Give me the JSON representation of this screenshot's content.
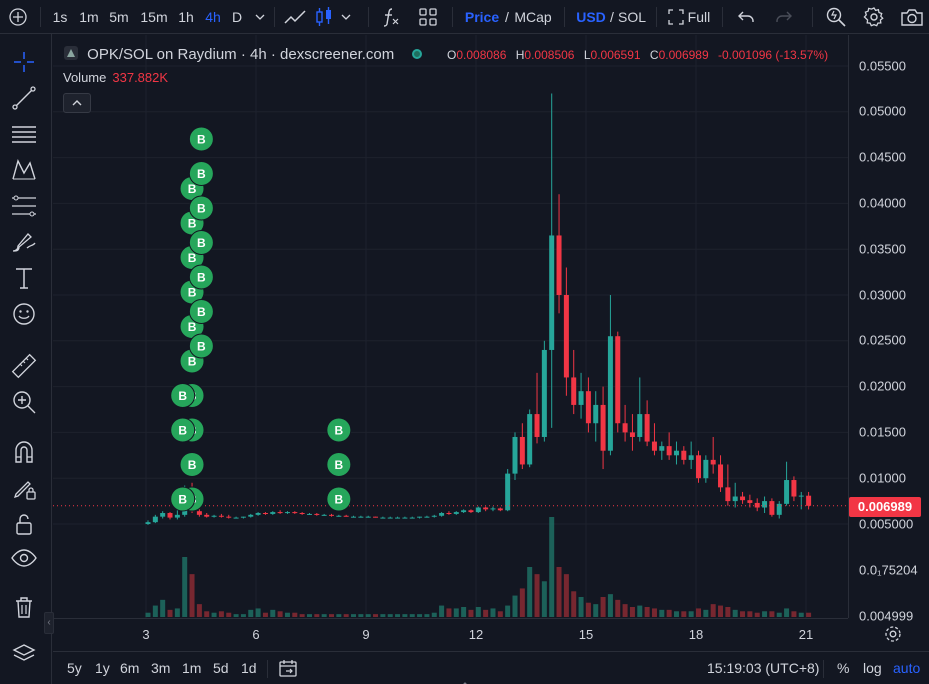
{
  "toolbar": {
    "intervals": [
      "1s",
      "1m",
      "5m",
      "15m",
      "1h",
      "4h",
      "D"
    ],
    "active_interval": "4h",
    "price_label": "Price",
    "mcap_label": "MCap",
    "usd_label": "USD",
    "sol_label": "SOL",
    "full_label": "Full",
    "slash": "/"
  },
  "legend": {
    "title": "OPK/SOL on Raydium · 4h · dexscreener.com",
    "o_key": "O",
    "o_val": "0.008086",
    "h_key": "H",
    "h_val": "0.008506",
    "l_key": "L",
    "l_val": "0.006591",
    "c_key": "C",
    "c_val": "0.006989",
    "change": "-0.001096 (-13.57%)",
    "volume_label": "Volume",
    "volume_value": "337.882K"
  },
  "price_axis": {
    "labels": [
      "0.05500",
      "0.05000",
      "0.04500",
      "0.04000",
      "0.03500",
      "0.03000",
      "0.02500",
      "0.02000",
      "0.01500",
      "0.01000",
      "0.005000",
      "0.0₁75204",
      "0.004999"
    ],
    "last_price": "0.006989"
  },
  "time_axis": {
    "labels": [
      "3",
      "6",
      "9",
      "12",
      "15",
      "18",
      "21"
    ]
  },
  "bottom_bar": {
    "ranges": [
      "5y",
      "1y",
      "6m",
      "3m",
      "1m",
      "5d",
      "1d"
    ],
    "time": "15:19:03 (UTC+8)",
    "percent_label": "%",
    "log_label": "log",
    "auto_label": "auto"
  },
  "markers": {
    "buy_label": "B"
  },
  "colors": {
    "up": "#26a69a",
    "down": "#f23645",
    "accent": "#2962ff",
    "background": "#131722",
    "grid": "#1e222d",
    "buy_marker": "#26a65b"
  },
  "chart_data": {
    "type": "candlestick",
    "title": "OPK/SOL on Raydium · 4h · dexscreener.com",
    "x_ticks": [
      "3",
      "6",
      "9",
      "12",
      "15",
      "18",
      "21"
    ],
    "y_ticks": [
      0.055,
      0.05,
      0.045,
      0.04,
      0.035,
      0.03,
      0.025,
      0.02,
      0.015,
      0.01,
      0.005
    ],
    "ylim": [
      0.0035,
      0.0575
    ],
    "last_close": 0.006989,
    "candles": [
      {
        "o": 0.005,
        "h": 0.0054,
        "l": 0.0049,
        "c": 0.0052,
        "v": 3
      },
      {
        "o": 0.0052,
        "h": 0.006,
        "l": 0.0051,
        "c": 0.0058,
        "v": 8
      },
      {
        "o": 0.0058,
        "h": 0.0064,
        "l": 0.0056,
        "c": 0.0062,
        "v": 12
      },
      {
        "o": 0.0062,
        "h": 0.0063,
        "l": 0.0055,
        "c": 0.0057,
        "v": 5
      },
      {
        "o": 0.0057,
        "h": 0.0065,
        "l": 0.0055,
        "c": 0.006,
        "v": 6
      },
      {
        "o": 0.006,
        "h": 0.0092,
        "l": 0.0058,
        "c": 0.0088,
        "v": 42
      },
      {
        "o": 0.0088,
        "h": 0.0095,
        "l": 0.0062,
        "c": 0.0064,
        "v": 30
      },
      {
        "o": 0.0064,
        "h": 0.0066,
        "l": 0.0058,
        "c": 0.006,
        "v": 9
      },
      {
        "o": 0.006,
        "h": 0.0062,
        "l": 0.0057,
        "c": 0.0058,
        "v": 4
      },
      {
        "o": 0.0058,
        "h": 0.006,
        "l": 0.0057,
        "c": 0.0059,
        "v": 3
      },
      {
        "o": 0.0059,
        "h": 0.0061,
        "l": 0.0057,
        "c": 0.0058,
        "v": 4
      },
      {
        "o": 0.0058,
        "h": 0.006,
        "l": 0.0056,
        "c": 0.0057,
        "v": 3
      },
      {
        "o": 0.0057,
        "h": 0.0058,
        "l": 0.0056,
        "c": 0.0057,
        "v": 2
      },
      {
        "o": 0.0057,
        "h": 0.0058,
        "l": 0.0056,
        "c": 0.0058,
        "v": 2
      },
      {
        "o": 0.0058,
        "h": 0.0061,
        "l": 0.0057,
        "c": 0.006,
        "v": 5
      },
      {
        "o": 0.006,
        "h": 0.0063,
        "l": 0.0059,
        "c": 0.0062,
        "v": 6
      },
      {
        "o": 0.0062,
        "h": 0.0063,
        "l": 0.006,
        "c": 0.0061,
        "v": 3
      },
      {
        "o": 0.0061,
        "h": 0.0064,
        "l": 0.006,
        "c": 0.0063,
        "v": 5
      },
      {
        "o": 0.0063,
        "h": 0.0065,
        "l": 0.0061,
        "c": 0.0062,
        "v": 4
      },
      {
        "o": 0.0062,
        "h": 0.0064,
        "l": 0.0061,
        "c": 0.0063,
        "v": 3
      },
      {
        "o": 0.0063,
        "h": 0.0064,
        "l": 0.0061,
        "c": 0.0062,
        "v": 3
      },
      {
        "o": 0.0062,
        "h": 0.0063,
        "l": 0.006,
        "c": 0.0061,
        "v": 2
      },
      {
        "o": 0.0061,
        "h": 0.0062,
        "l": 0.006,
        "c": 0.0061,
        "v": 2
      },
      {
        "o": 0.0061,
        "h": 0.0062,
        "l": 0.0059,
        "c": 0.006,
        "v": 2
      },
      {
        "o": 0.006,
        "h": 0.0061,
        "l": 0.0059,
        "c": 0.006,
        "v": 2
      },
      {
        "o": 0.006,
        "h": 0.0061,
        "l": 0.0058,
        "c": 0.0059,
        "v": 2
      },
      {
        "o": 0.0059,
        "h": 0.006,
        "l": 0.0058,
        "c": 0.0059,
        "v": 2
      },
      {
        "o": 0.0059,
        "h": 0.006,
        "l": 0.0058,
        "c": 0.0058,
        "v": 2
      },
      {
        "o": 0.0058,
        "h": 0.0059,
        "l": 0.0057,
        "c": 0.0058,
        "v": 2
      },
      {
        "o": 0.0058,
        "h": 0.0059,
        "l": 0.0057,
        "c": 0.0058,
        "v": 2
      },
      {
        "o": 0.0058,
        "h": 0.0059,
        "l": 0.0057,
        "c": 0.0058,
        "v": 2
      },
      {
        "o": 0.0058,
        "h": 0.0058,
        "l": 0.0057,
        "c": 0.0057,
        "v": 2
      },
      {
        "o": 0.0057,
        "h": 0.0058,
        "l": 0.0056,
        "c": 0.0057,
        "v": 2
      },
      {
        "o": 0.0057,
        "h": 0.0058,
        "l": 0.0056,
        "c": 0.0057,
        "v": 2
      },
      {
        "o": 0.0057,
        "h": 0.0058,
        "l": 0.0056,
        "c": 0.0057,
        "v": 2
      },
      {
        "o": 0.0057,
        "h": 0.0058,
        "l": 0.0056,
        "c": 0.0057,
        "v": 2
      },
      {
        "o": 0.0057,
        "h": 0.0058,
        "l": 0.0056,
        "c": 0.0057,
        "v": 2
      },
      {
        "o": 0.0057,
        "h": 0.0058,
        "l": 0.0056,
        "c": 0.0058,
        "v": 2
      },
      {
        "o": 0.0058,
        "h": 0.0059,
        "l": 0.0057,
        "c": 0.0058,
        "v": 2
      },
      {
        "o": 0.0058,
        "h": 0.006,
        "l": 0.0057,
        "c": 0.0059,
        "v": 3
      },
      {
        "o": 0.0059,
        "h": 0.0063,
        "l": 0.0058,
        "c": 0.0062,
        "v": 8
      },
      {
        "o": 0.0062,
        "h": 0.0064,
        "l": 0.006,
        "c": 0.0061,
        "v": 6
      },
      {
        "o": 0.0061,
        "h": 0.0064,
        "l": 0.006,
        "c": 0.0063,
        "v": 6
      },
      {
        "o": 0.0063,
        "h": 0.0066,
        "l": 0.0062,
        "c": 0.0065,
        "v": 7
      },
      {
        "o": 0.0065,
        "h": 0.0066,
        "l": 0.0062,
        "c": 0.0063,
        "v": 5
      },
      {
        "o": 0.0063,
        "h": 0.0069,
        "l": 0.0062,
        "c": 0.0068,
        "v": 7
      },
      {
        "o": 0.0068,
        "h": 0.0069,
        "l": 0.0064,
        "c": 0.0066,
        "v": 5
      },
      {
        "o": 0.0066,
        "h": 0.0069,
        "l": 0.0064,
        "c": 0.0067,
        "v": 6
      },
      {
        "o": 0.0067,
        "h": 0.0068,
        "l": 0.0064,
        "c": 0.0065,
        "v": 4
      },
      {
        "o": 0.0065,
        "h": 0.011,
        "l": 0.0064,
        "c": 0.0105,
        "v": 8
      },
      {
        "o": 0.0105,
        "h": 0.015,
        "l": 0.0098,
        "c": 0.0145,
        "v": 15
      },
      {
        "o": 0.0145,
        "h": 0.016,
        "l": 0.011,
        "c": 0.0115,
        "v": 20
      },
      {
        "o": 0.0115,
        "h": 0.0175,
        "l": 0.0112,
        "c": 0.017,
        "v": 35
      },
      {
        "o": 0.017,
        "h": 0.0215,
        "l": 0.0138,
        "c": 0.0145,
        "v": 30
      },
      {
        "o": 0.0145,
        "h": 0.025,
        "l": 0.014,
        "c": 0.024,
        "v": 25
      },
      {
        "o": 0.024,
        "h": 0.052,
        "l": 0.0155,
        "c": 0.0365,
        "v": 70
      },
      {
        "o": 0.0365,
        "h": 0.041,
        "l": 0.028,
        "c": 0.03,
        "v": 35
      },
      {
        "o": 0.03,
        "h": 0.033,
        "l": 0.019,
        "c": 0.021,
        "v": 30
      },
      {
        "o": 0.021,
        "h": 0.024,
        "l": 0.017,
        "c": 0.018,
        "v": 18
      },
      {
        "o": 0.018,
        "h": 0.0215,
        "l": 0.0165,
        "c": 0.0195,
        "v": 14
      },
      {
        "o": 0.0195,
        "h": 0.021,
        "l": 0.015,
        "c": 0.016,
        "v": 10
      },
      {
        "o": 0.016,
        "h": 0.0195,
        "l": 0.014,
        "c": 0.018,
        "v": 9
      },
      {
        "o": 0.018,
        "h": 0.02,
        "l": 0.011,
        "c": 0.013,
        "v": 14
      },
      {
        "o": 0.013,
        "h": 0.03,
        "l": 0.0125,
        "c": 0.0255,
        "v": 16
      },
      {
        "o": 0.0255,
        "h": 0.026,
        "l": 0.015,
        "c": 0.016,
        "v": 12
      },
      {
        "o": 0.016,
        "h": 0.018,
        "l": 0.014,
        "c": 0.015,
        "v": 9
      },
      {
        "o": 0.015,
        "h": 0.017,
        "l": 0.013,
        "c": 0.0145,
        "v": 7
      },
      {
        "o": 0.0145,
        "h": 0.021,
        "l": 0.014,
        "c": 0.017,
        "v": 8
      },
      {
        "o": 0.017,
        "h": 0.0185,
        "l": 0.0135,
        "c": 0.014,
        "v": 7
      },
      {
        "o": 0.014,
        "h": 0.016,
        "l": 0.0125,
        "c": 0.013,
        "v": 6
      },
      {
        "o": 0.013,
        "h": 0.014,
        "l": 0.012,
        "c": 0.0135,
        "v": 5
      },
      {
        "o": 0.0135,
        "h": 0.015,
        "l": 0.012,
        "c": 0.0125,
        "v": 5
      },
      {
        "o": 0.0125,
        "h": 0.014,
        "l": 0.0115,
        "c": 0.013,
        "v": 4
      },
      {
        "o": 0.013,
        "h": 0.0135,
        "l": 0.0115,
        "c": 0.012,
        "v": 4
      },
      {
        "o": 0.012,
        "h": 0.014,
        "l": 0.011,
        "c": 0.0125,
        "v": 4
      },
      {
        "o": 0.0125,
        "h": 0.013,
        "l": 0.0095,
        "c": 0.01,
        "v": 6
      },
      {
        "o": 0.01,
        "h": 0.0125,
        "l": 0.0095,
        "c": 0.012,
        "v": 5
      },
      {
        "o": 0.012,
        "h": 0.0145,
        "l": 0.0105,
        "c": 0.0115,
        "v": 9
      },
      {
        "o": 0.0115,
        "h": 0.0125,
        "l": 0.0085,
        "c": 0.009,
        "v": 8
      },
      {
        "o": 0.009,
        "h": 0.0115,
        "l": 0.007,
        "c": 0.0075,
        "v": 7
      },
      {
        "o": 0.0075,
        "h": 0.0095,
        "l": 0.0068,
        "c": 0.008,
        "v": 5
      },
      {
        "o": 0.008,
        "h": 0.0085,
        "l": 0.0072,
        "c": 0.0076,
        "v": 4
      },
      {
        "o": 0.0076,
        "h": 0.0082,
        "l": 0.0068,
        "c": 0.0073,
        "v": 4
      },
      {
        "o": 0.0073,
        "h": 0.0078,
        "l": 0.0064,
        "c": 0.0068,
        "v": 3
      },
      {
        "o": 0.0068,
        "h": 0.008,
        "l": 0.0062,
        "c": 0.0075,
        "v": 4
      },
      {
        "o": 0.0075,
        "h": 0.0078,
        "l": 0.0058,
        "c": 0.006,
        "v": 4
      },
      {
        "o": 0.006,
        "h": 0.0075,
        "l": 0.0056,
        "c": 0.0072,
        "v": 3
      },
      {
        "o": 0.0072,
        "h": 0.0118,
        "l": 0.007,
        "c": 0.0098,
        "v": 6
      },
      {
        "o": 0.0098,
        "h": 0.0102,
        "l": 0.0075,
        "c": 0.008,
        "v": 4
      },
      {
        "o": 0.008,
        "h": 0.0085,
        "l": 0.0066,
        "c": 0.0081,
        "v": 3
      },
      {
        "o": 0.00809,
        "h": 0.0085,
        "l": 0.00659,
        "c": 0.00699,
        "v": 3
      }
    ],
    "buy_markers": [
      {
        "candle": 6,
        "level": 0
      },
      {
        "candle": 6,
        "level": 1
      },
      {
        "candle": 6,
        "level": 2
      },
      {
        "candle": 6,
        "level": 3
      },
      {
        "candle": 6,
        "level": 4
      },
      {
        "candle": 6,
        "level": 5
      },
      {
        "candle": 6,
        "level": 6
      },
      {
        "candle": 6,
        "level": 7
      },
      {
        "candle": 6,
        "level": 8
      },
      {
        "candle": 6,
        "level": 9
      },
      {
        "candle": 7,
        "level": 4
      },
      {
        "candle": 7,
        "level": 5
      },
      {
        "candle": 7,
        "level": 6
      },
      {
        "candle": 7,
        "level": 7
      },
      {
        "candle": 7,
        "level": 8
      },
      {
        "candle": 7,
        "level": 9
      },
      {
        "candle": 7,
        "level": 10
      },
      {
        "candle": 5,
        "level": 2
      },
      {
        "candle": 5,
        "level": 3
      },
      {
        "candle": 5,
        "level": 0
      },
      {
        "candle": 26,
        "level": 0
      },
      {
        "candle": 26,
        "level": 1
      },
      {
        "candle": 26,
        "level": 2
      }
    ]
  }
}
